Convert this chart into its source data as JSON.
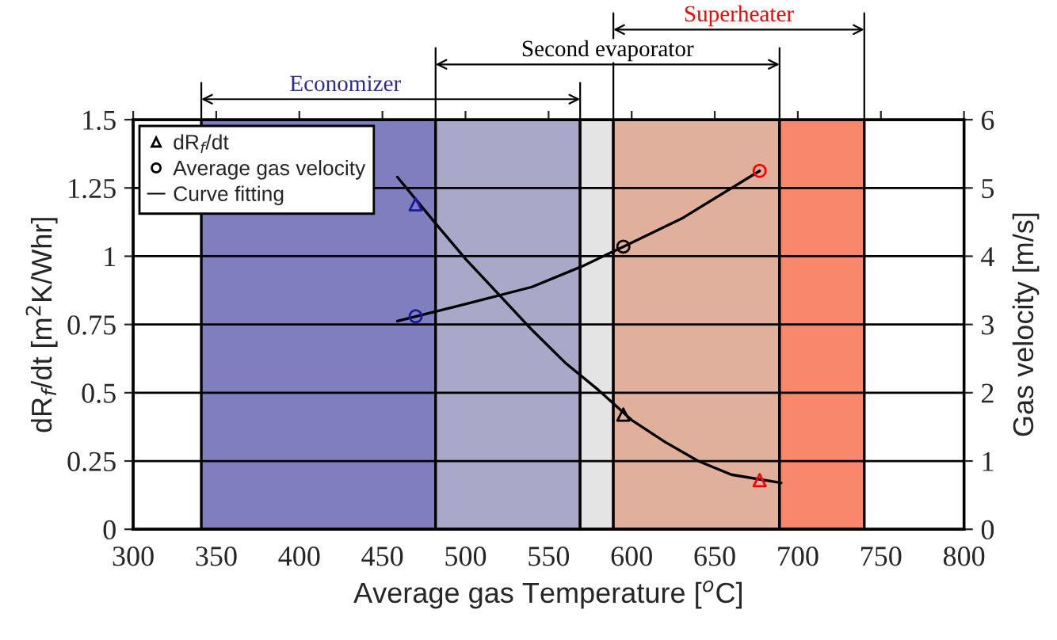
{
  "chart_data": {
    "type": "scatter",
    "xlabel": "Average gas Temperature [$^{o}$C]",
    "ylabel": "dR$_{f}$/dt [m$^{2}$K/Whr]",
    "y2label": "Gas velocity [m/s]",
    "xlim": [
      300,
      800
    ],
    "xticks": [
      300,
      350,
      400,
      450,
      500,
      550,
      600,
      650,
      700,
      750,
      800
    ],
    "ylim": [
      0,
      1.5
    ],
    "yticks": [
      0,
      0.25,
      0.5,
      0.75,
      1,
      1.25,
      1.5
    ],
    "y2lim": [
      0,
      6
    ],
    "y2ticks": [
      0,
      1,
      2,
      3,
      4,
      5,
      6
    ],
    "grid": "y",
    "legend": "top left",
    "bands": [
      {
        "axis": "x",
        "from": 341,
        "to": 482,
        "color": "#7f7fbf"
      },
      {
        "axis": "x",
        "from": 482,
        "to": 569,
        "color": "#aaa8c8"
      },
      {
        "axis": "x",
        "from": 569,
        "to": 589,
        "color": "#e4e4e4"
      },
      {
        "axis": "x",
        "from": 589,
        "to": 689,
        "color": "#e1b09c"
      },
      {
        "axis": "x",
        "from": 689,
        "to": 740,
        "color": "#f7886c"
      }
    ],
    "annotations": [
      "Economizer",
      "Second evaporator",
      "Superheater"
    ],
    "series": [
      {
        "name": "dR$_{f}$/dt",
        "marker": "triangle",
        "x": [
          470,
          595,
          677
        ],
        "values": [
          1.19,
          0.42,
          0.18
        ],
        "colors": [
          "#1a1a9a",
          "#000000",
          "#ff0000"
        ]
      },
      {
        "name": "Average gas velocity",
        "type": "scatter",
        "marker": "circle",
        "axis": "y2",
        "x": [
          470,
          595,
          677
        ],
        "values": [
          3.12,
          4.14,
          5.25
        ],
        "colors": [
          "#1a1a9a",
          "#000000",
          "#ff0000"
        ]
      },
      {
        "name": "Curve fitting",
        "type": "line",
        "color": "#000000",
        "x": [
          459,
          482,
          500,
          520,
          540,
          560,
          580,
          600,
          620,
          640,
          660,
          690
        ],
        "values": [
          1.29,
          1.12,
          0.99,
          0.86,
          0.73,
          0.61,
          0.51,
          0.4,
          0.32,
          0.25,
          0.2,
          0.17
        ]
      },
      {
        "type": "line",
        "color": "#000000",
        "axis": "y2",
        "x": [
          459,
          500,
          540,
          570,
          595,
          630,
          677
        ],
        "values": [
          3.05,
          3.3,
          3.55,
          3.85,
          4.14,
          4.55,
          5.25
        ]
      }
    ]
  }
}
